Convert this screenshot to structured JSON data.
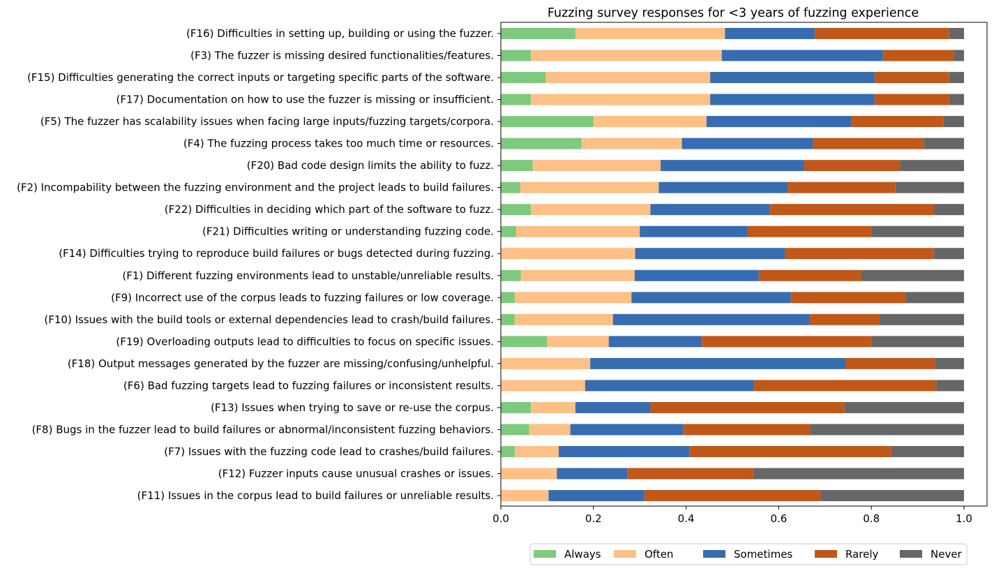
{
  "chart_data": {
    "type": "bar",
    "orientation": "horizontal",
    "stacked": true,
    "title": "Fuzzing survey responses for <3 years of fuzzing experience",
    "xlabel": "",
    "ylabel": "",
    "xlim": [
      0,
      1.0
    ],
    "xticks": [
      "0.0",
      "0.2",
      "0.4",
      "0.6",
      "0.8",
      "1.0"
    ],
    "grid": false,
    "legend_position": "bottom-right",
    "categories": [
      "(F16) Difficulties in setting up, building or using the fuzzer.",
      "(F3) The fuzzer is missing desired functionalities/features.",
      "(F15) Difficulties generating the correct inputs or targeting specific parts of the software.",
      "(F17) Documentation on how to use the fuzzer is missing or insufficient.",
      "(F5) The fuzzer has scalability issues when facing large inputs/fuzzing targets/corpora.",
      "(F4) The fuzzing process takes too much time or resources.",
      "(F20) Bad code design limits the ability to fuzz.",
      "(F2) Incompability between the fuzzing environment and the project leads to build failures.",
      "(F22) Difficulties in deciding which part of the software to fuzz.",
      "(F21) Difficulties writing or understanding fuzzing code.",
      "(F14) Difficulties trying to reproduce build failures or bugs detected during fuzzing.",
      "(F1) Different fuzzing environments lead to unstable/unreliable results.",
      "(F9) Incorrect use of the corpus leads to fuzzing failures or low coverage.",
      "(F10) Issues with the build tools or external dependencies lead to crash/build failures.",
      "(F19) Overloading outputs lead to difficulties to focus on specific issues.",
      "(F18) Output messages generated by the fuzzer are missing/confusing/unhelpful.",
      "(F6) Bad fuzzing targets lead to fuzzing failures or inconsistent results.",
      "(F13) Issues when trying to save or re-use the corpus.",
      "(F8) Bugs in the fuzzer lead to build failures or abnormal/inconsistent fuzzing behaviors.",
      "(F7) Issues with the fuzzing code lead to crashes/build failures.",
      "(F12) Fuzzer inputs cause unusual crashes or issues.",
      "(F11) Issues in the corpus lead to build failures or unreliable results."
    ],
    "series": [
      {
        "name": "Always",
        "color": "#7fc97f",
        "values": [
          0.161,
          0.065,
          0.097,
          0.065,
          0.2,
          0.174,
          0.069,
          0.042,
          0.065,
          0.033,
          0.0,
          0.043,
          0.03,
          0.03,
          0.1,
          0.0,
          0.0,
          0.065,
          0.061,
          0.03,
          0.0,
          0.0
        ]
      },
      {
        "name": "Often",
        "color": "#fdc086",
        "values": [
          0.323,
          0.412,
          0.355,
          0.387,
          0.244,
          0.217,
          0.276,
          0.299,
          0.258,
          0.267,
          0.29,
          0.246,
          0.252,
          0.212,
          0.133,
          0.193,
          0.182,
          0.096,
          0.089,
          0.095,
          0.121,
          0.103
        ]
      },
      {
        "name": "Sometimes",
        "color": "#386cb0",
        "values": [
          0.194,
          0.348,
          0.355,
          0.355,
          0.312,
          0.283,
          0.31,
          0.278,
          0.258,
          0.233,
          0.323,
          0.268,
          0.344,
          0.425,
          0.201,
          0.551,
          0.364,
          0.162,
          0.244,
          0.282,
          0.152,
          0.207
        ]
      },
      {
        "name": "Rarely",
        "color": "#c0581a",
        "values": [
          0.29,
          0.153,
          0.161,
          0.161,
          0.2,
          0.239,
          0.207,
          0.233,
          0.355,
          0.267,
          0.322,
          0.221,
          0.249,
          0.151,
          0.366,
          0.193,
          0.394,
          0.419,
          0.274,
          0.437,
          0.272,
          0.38
        ]
      },
      {
        "name": "Never",
        "color": "#666666",
        "values": [
          0.032,
          0.022,
          0.032,
          0.032,
          0.044,
          0.087,
          0.138,
          0.148,
          0.064,
          0.2,
          0.065,
          0.222,
          0.125,
          0.182,
          0.2,
          0.063,
          0.06,
          0.258,
          0.332,
          0.156,
          0.455,
          0.31
        ]
      }
    ]
  }
}
